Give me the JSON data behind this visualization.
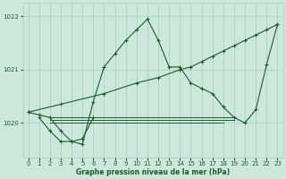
{
  "title": "Graphe pression niveau de la mer (hPa)",
  "background_color": "#cce8dc",
  "grid_color": "#aaccc0",
  "line_color": "#1a5c28",
  "xlim": [
    -0.5,
    23.5
  ],
  "ylim": [
    1019.35,
    1022.25
  ],
  "yticks": [
    1020,
    1021,
    1022
  ],
  "xticks": [
    0,
    1,
    2,
    3,
    4,
    5,
    6,
    7,
    8,
    9,
    10,
    11,
    12,
    13,
    14,
    15,
    16,
    17,
    18,
    19,
    20,
    21,
    22,
    23
  ],
  "series_main": {
    "x": [
      0,
      1,
      2,
      3,
      4,
      5,
      6,
      7,
      8,
      9,
      10,
      11,
      12,
      13,
      14,
      15,
      16,
      17,
      18,
      19,
      20,
      21,
      22,
      23
    ],
    "y": [
      1020.2,
      1020.15,
      1020.1,
      1019.85,
      1019.65,
      1019.6,
      1020.4,
      1021.05,
      1021.3,
      1021.55,
      1021.75,
      1021.95,
      1021.55,
      1021.05,
      1021.05,
      1020.75,
      1020.65,
      1020.55,
      1020.3,
      1020.1,
      1020.0,
      1020.25,
      1021.1,
      1021.85
    ]
  },
  "series_diagonal": {
    "x": [
      0,
      3,
      7,
      10,
      12,
      14,
      15,
      16,
      17,
      18,
      19,
      20,
      21,
      22,
      23
    ],
    "y": [
      1020.2,
      1020.35,
      1020.55,
      1020.75,
      1020.85,
      1021.0,
      1021.05,
      1021.15,
      1021.25,
      1021.35,
      1021.45,
      1021.55,
      1021.65,
      1021.75,
      1021.85
    ]
  },
  "series_flat1": {
    "x": [
      2,
      19
    ],
    "y": [
      1020.1,
      1020.1
    ]
  },
  "series_flat2": {
    "x": [
      2,
      19
    ],
    "y": [
      1020.05,
      1020.05
    ]
  },
  "series_flat3": {
    "x": [
      2,
      18
    ],
    "y": [
      1020.0,
      1020.0
    ]
  },
  "series_small": {
    "x": [
      1,
      2,
      3,
      4,
      5,
      6
    ],
    "y": [
      1020.1,
      1019.85,
      1019.65,
      1019.65,
      1019.7,
      1020.1
    ]
  }
}
